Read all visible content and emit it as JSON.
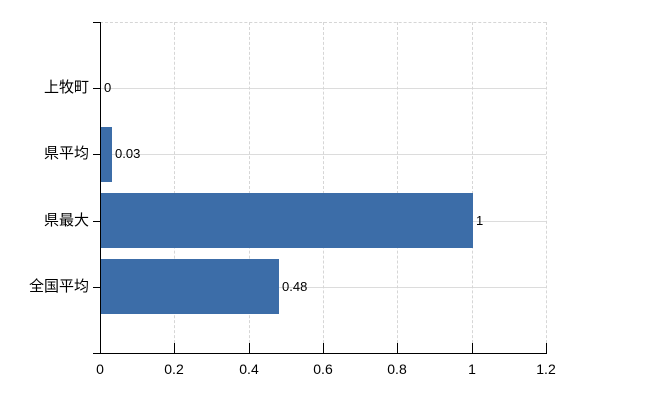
{
  "chart_data": {
    "type": "bar",
    "orientation": "horizontal",
    "title": "",
    "xlabel": "",
    "ylabel": "",
    "categories": [
      "上牧町",
      "県平均",
      "県最大",
      "全国平均"
    ],
    "values": [
      0,
      0.03,
      1,
      0.48
    ],
    "value_labels": [
      "0",
      "0.03",
      "1",
      "0.48"
    ],
    "x_ticks": [
      0,
      0.2,
      0.4,
      0.6,
      0.8,
      1,
      1.2
    ],
    "x_tick_labels": [
      "0",
      "0.2",
      "0.4",
      "0.6",
      "0.8",
      "1",
      "1.2"
    ],
    "xlim": [
      0,
      1.2
    ],
    "grid": true,
    "legend": false,
    "bar_color": "#3c6da8",
    "axis_color": "#000000",
    "grid_color": "#dcdcdc",
    "background_color": "#ffffff",
    "text_color": "#000000"
  }
}
